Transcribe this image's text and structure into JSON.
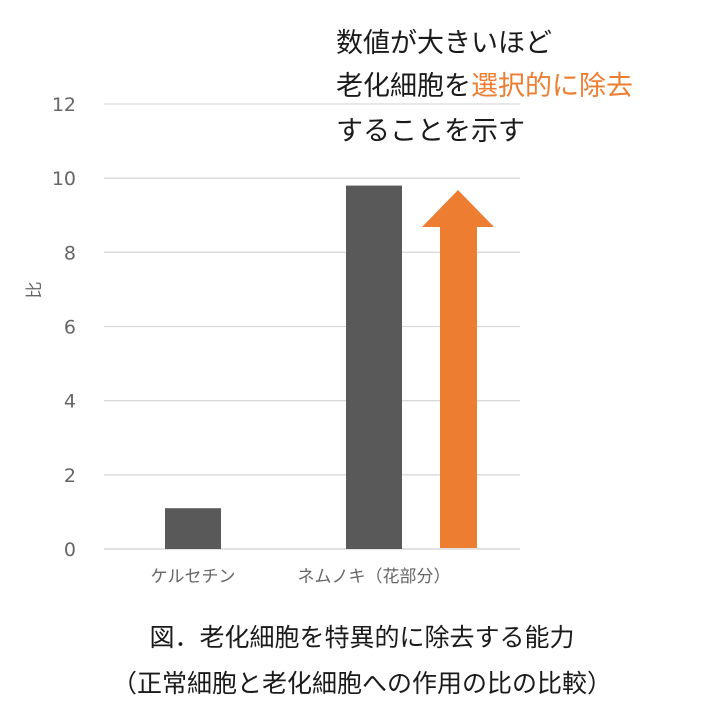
{
  "chart_data": {
    "type": "bar",
    "categories": [
      "ケルセチン",
      "ネムノキ（花部分）"
    ],
    "values": [
      1.1,
      9.8
    ],
    "ylabel": "比",
    "xlabel": "",
    "ylim": [
      0,
      12
    ],
    "yticks": [
      "0",
      "2",
      "4",
      "6",
      "8",
      "10",
      "12"
    ],
    "grid": true,
    "bar_color": "#595959",
    "annotation": {
      "line1": "数値が大きいほど",
      "line2_before": "老化細胞を",
      "line2_highlight": "選択的に除去",
      "line3": "することを示す",
      "highlight_color": "#ED7D31"
    },
    "arrow_color": "#ED7D31"
  },
  "caption": {
    "line1": "図．老化細胞を特異的に除去する能力",
    "line2": "（正常細胞と老化細胞への作用の比の比較）"
  }
}
